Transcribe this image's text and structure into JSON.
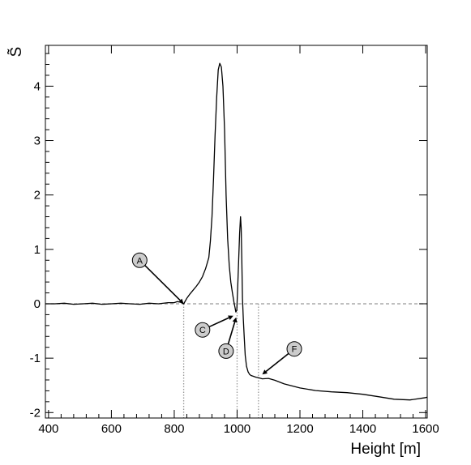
{
  "chart_data": {
    "type": "line",
    "title": "",
    "xlabel": "Height [m]",
    "ylabel": "S̃",
    "xlim": [
      390,
      1605
    ],
    "ylim": [
      -2.1,
      4.75
    ],
    "grid": false,
    "legend": "none",
    "x_ticks": [
      400,
      600,
      800,
      1000,
      1200,
      1400,
      1600
    ],
    "x_tick_labels": [
      "400",
      "600",
      "800",
      "1000",
      "1200",
      "1400",
      "1600"
    ],
    "y_ticks": [
      -2,
      -1,
      0,
      1,
      2,
      3,
      4
    ],
    "y_tick_labels": [
      "-2",
      "-1",
      "0",
      "1",
      "2",
      "3",
      "4"
    ],
    "reference_line": {
      "y": 0,
      "style": "dashed",
      "color": "#999999"
    },
    "vertical_markers": [
      {
        "x": 830,
        "style": "dotted",
        "color": "#999999"
      },
      {
        "x": 1000,
        "style": "dotted",
        "color": "#999999"
      },
      {
        "x": 1068,
        "style": "dotted",
        "color": "#999999"
      }
    ],
    "annotations": [
      {
        "label": "A",
        "text_at": [
          690,
          0.8
        ],
        "arrow_to": [
          830,
          0.0
        ]
      },
      {
        "label": "C",
        "text_at": [
          890,
          -0.48
        ],
        "arrow_to": [
          988,
          -0.22
        ]
      },
      {
        "label": "D",
        "text_at": [
          965,
          -0.87
        ],
        "arrow_to": [
          997,
          -0.25
        ]
      },
      {
        "label": "F",
        "text_at": [
          1182,
          -0.83
        ],
        "arrow_to": [
          1080,
          -1.3
        ]
      }
    ],
    "series": [
      {
        "color": "#000000",
        "x": [
          390,
          420,
          450,
          480,
          510,
          540,
          570,
          600,
          630,
          660,
          690,
          720,
          750,
          780,
          800,
          810,
          820,
          830,
          840,
          850,
          860,
          870,
          880,
          890,
          900,
          910,
          915,
          920,
          925,
          930,
          935,
          940,
          945,
          950,
          955,
          960,
          965,
          970,
          975,
          980,
          985,
          990,
          993,
          996,
          999,
          1002,
          1005,
          1008,
          1011,
          1013,
          1015,
          1017,
          1020,
          1023,
          1026,
          1030,
          1035,
          1040,
          1045,
          1050,
          1060,
          1068,
          1080,
          1100,
          1120,
          1150,
          1200,
          1250,
          1300,
          1350,
          1400,
          1450,
          1500,
          1550,
          1600,
          1605
        ],
        "y": [
          0.0,
          0.0,
          0.01,
          -0.01,
          0.0,
          0.01,
          -0.01,
          0.0,
          0.01,
          0.0,
          -0.01,
          0.01,
          0.0,
          0.02,
          0.02,
          0.04,
          0.03,
          0.0,
          0.1,
          0.18,
          0.25,
          0.32,
          0.4,
          0.5,
          0.65,
          0.85,
          1.15,
          1.6,
          2.3,
          3.1,
          3.8,
          4.3,
          4.42,
          4.35,
          4.0,
          3.2,
          2.0,
          1.2,
          0.7,
          0.4,
          0.2,
          0.03,
          -0.06,
          -0.15,
          -0.12,
          0.3,
          0.8,
          1.3,
          1.6,
          1.4,
          0.8,
          0.1,
          -0.3,
          -0.65,
          -0.95,
          -1.15,
          -1.25,
          -1.3,
          -1.32,
          -1.33,
          -1.35,
          -1.36,
          -1.38,
          -1.4,
          -1.43,
          -1.47,
          -1.52,
          -1.57,
          -1.62,
          -1.66,
          -1.69,
          -1.71,
          -1.73,
          -1.74,
          -1.72,
          -1.74
        ]
      }
    ]
  }
}
